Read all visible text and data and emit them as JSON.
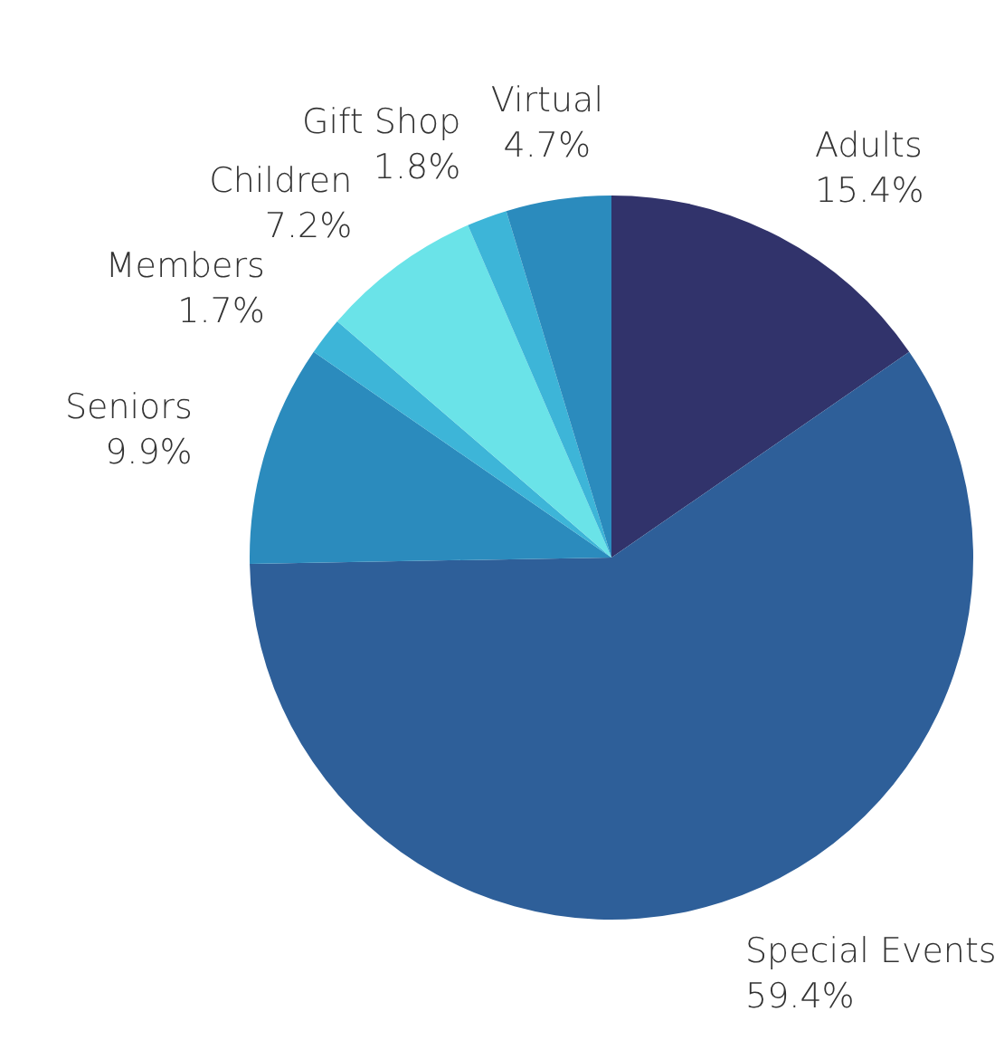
{
  "chart_data": {
    "type": "pie",
    "categories": [
      "Adults",
      "Special Events",
      "Seniors",
      "Members",
      "Children",
      "Gift Shop",
      "Virtual"
    ],
    "values": [
      15.4,
      59.4,
      9.9,
      1.7,
      7.2,
      1.8,
      4.7
    ],
    "value_labels": [
      "15.4%",
      "59.4%",
      "9.9%",
      "1.7%",
      "7.2%",
      "1.8%",
      "4.7%"
    ],
    "colors": [
      "#31336b",
      "#2e5f99",
      "#2b8bbd",
      "#3db5d8",
      "#6ae3e8",
      "#3db5d8",
      "#2b8bbd"
    ],
    "legend": false
  }
}
